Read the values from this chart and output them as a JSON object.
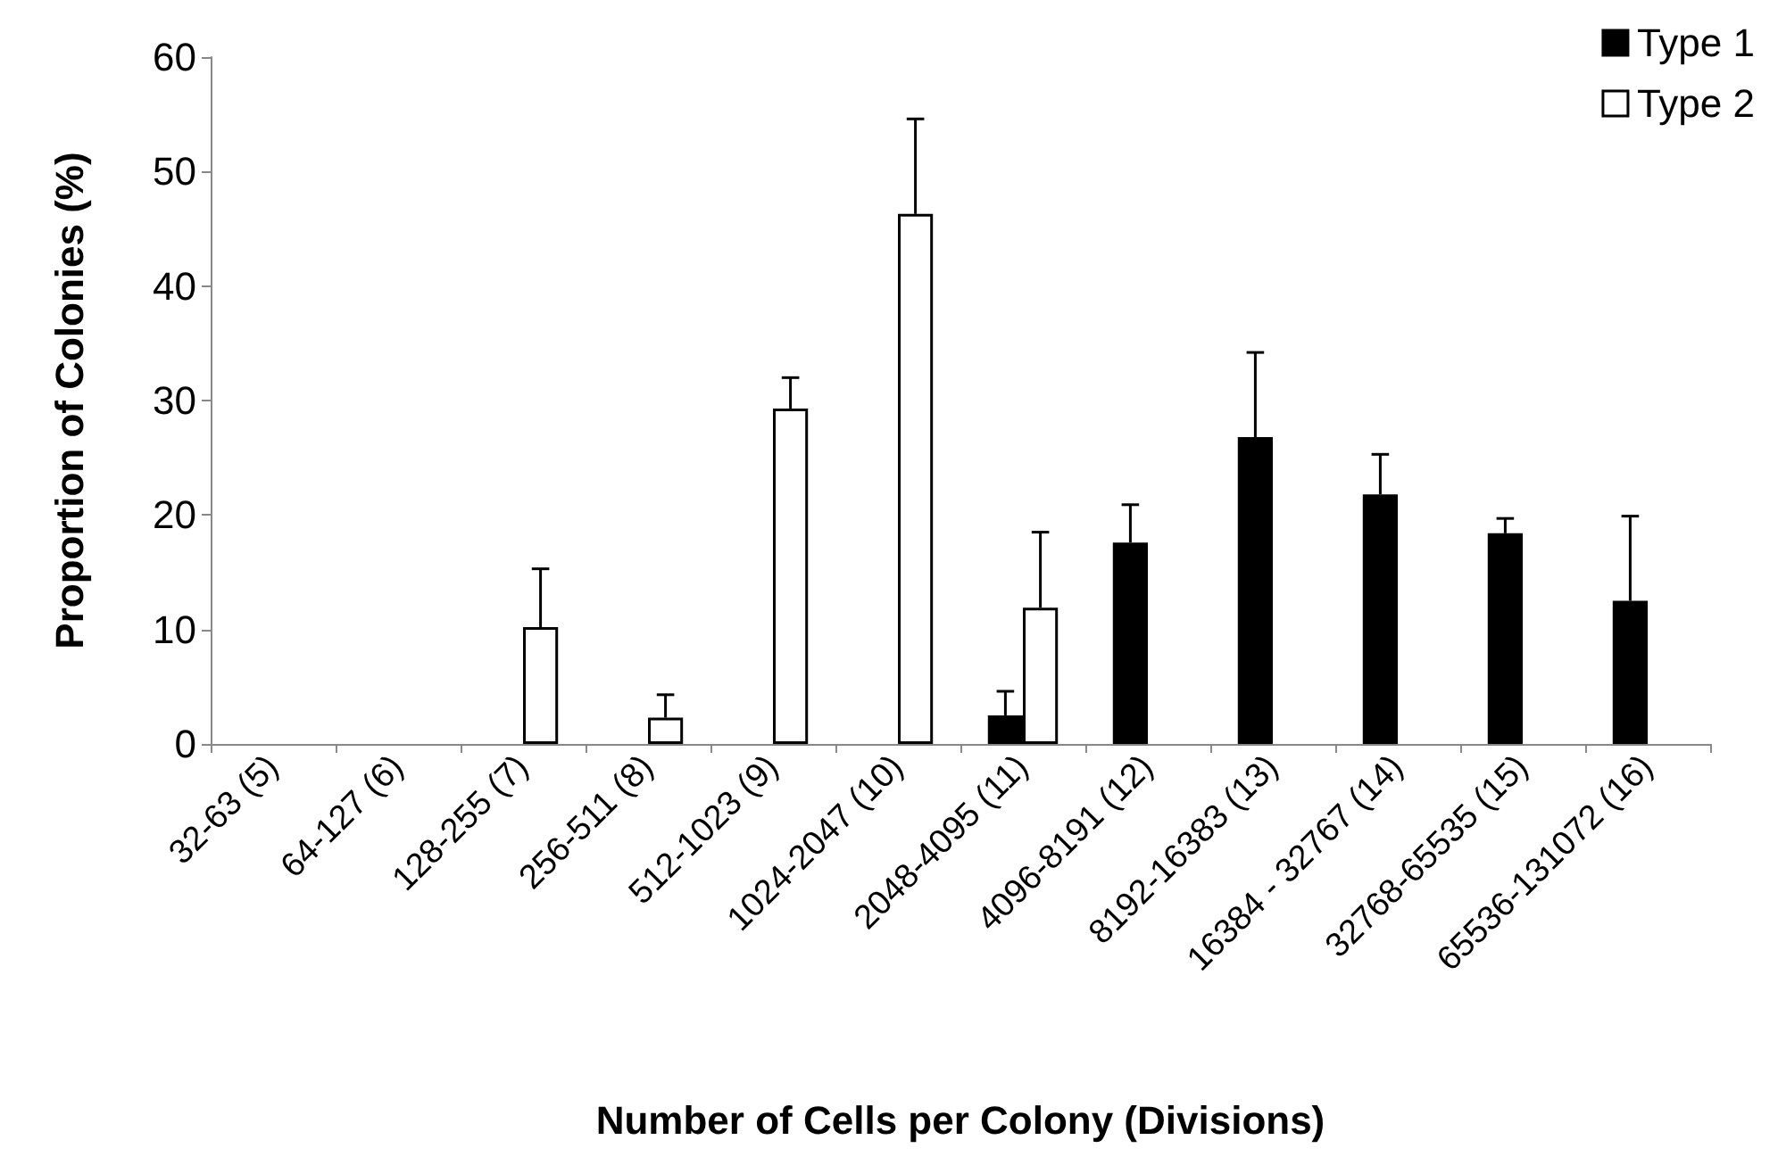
{
  "chart_data": {
    "type": "bar",
    "xlabel": "Number of Cells per Colony (Divisions)",
    "ylabel": "Proportion of Colonies (%)",
    "categories": [
      "32-63 (5)",
      "64-127 (6)",
      "128-255 (7)",
      "256-511 (8)",
      "512-1023 (9)",
      "1024-2047 (10)",
      "2048-4095 (11)",
      "4096-8191 (12)",
      "8192-16383 (13)",
      "16384 - 32767 (14)",
      "32768-65535 (15)",
      "65536-131072 (16)"
    ],
    "series": [
      {
        "name": "Type 1",
        "color": "#000000",
        "values": [
          null,
          null,
          null,
          null,
          null,
          null,
          2.5,
          17.6,
          26.8,
          21.8,
          18.4,
          12.5
        ],
        "errors": [
          null,
          null,
          null,
          null,
          null,
          null,
          [
            2.5,
            4.6
          ],
          [
            17.6,
            20.9
          ],
          [
            26.8,
            34.2
          ],
          [
            21.8,
            25.3
          ],
          [
            18.4,
            19.7
          ],
          [
            12.5,
            19.9
          ]
        ]
      },
      {
        "name": "Type 2",
        "color": "#ffffff",
        "values": [
          null,
          null,
          10.2,
          2.3,
          29.3,
          46.3,
          11.9,
          null,
          null,
          null,
          null,
          null
        ],
        "errors": [
          null,
          null,
          [
            10.2,
            15.3
          ],
          [
            2.3,
            4.3
          ],
          [
            29.3,
            32.0
          ],
          [
            46.3,
            54.6
          ],
          [
            11.9,
            18.5
          ],
          null,
          null,
          null,
          null,
          null
        ]
      }
    ],
    "ylim": [
      0,
      60
    ],
    "yticks": [
      0,
      10,
      20,
      30,
      40,
      50,
      60
    ],
    "grid": false,
    "legend": "top right"
  }
}
